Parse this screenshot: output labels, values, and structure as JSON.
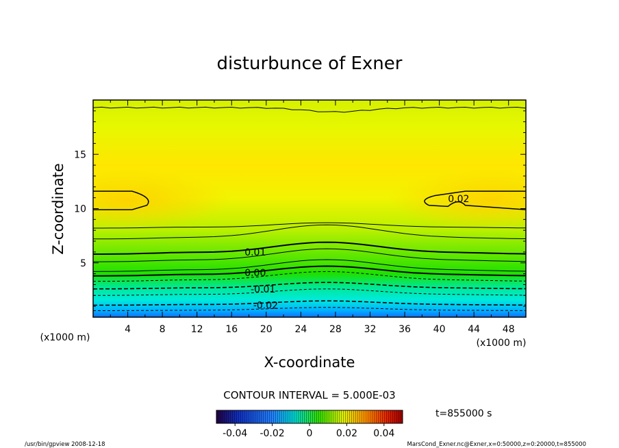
{
  "chart_data": {
    "type": "contour",
    "title": "disturbunce of Exner",
    "xlabel": "X-coordinate",
    "ylabel": "Z-coordinate",
    "xunit_left": "(x1000 m)",
    "xunit_right": "(x1000 m)",
    "xlim": [
      0,
      50
    ],
    "ylim": [
      0,
      20
    ],
    "xticks": [
      4,
      8,
      12,
      16,
      20,
      24,
      28,
      32,
      36,
      40,
      44,
      48
    ],
    "yticks": [
      5,
      10,
      15
    ],
    "contour_interval_label": "CONTOUR INTERVAL = 5.000E-03",
    "contour_interval": 0.005,
    "contour_labels": [
      {
        "value": 0.02,
        "text": "0.02",
        "x": 41,
        "z": 10.9
      },
      {
        "value": 0.01,
        "text": "0.01",
        "x": 17.5,
        "z": 6.0
      },
      {
        "value": 0.0,
        "text": "0.00",
        "x": 17.5,
        "z": 4.1
      },
      {
        "value": -0.01,
        "text": "-0.01",
        "x": 18.2,
        "z": 2.6
      },
      {
        "value": -0.02,
        "text": "-0.02",
        "x": 18.5,
        "z": 1.1
      }
    ],
    "colorbar": {
      "min": -0.05,
      "max": 0.05,
      "ticks": [
        "-0.04",
        "-0.02",
        "0",
        "0.02",
        "0.04"
      ],
      "tick_values": [
        -0.04,
        -0.02,
        0,
        0.02,
        0.04
      ]
    },
    "time_label": "t=855000 s",
    "footer_left": "/usr/bin/gpview  2008-12-18",
    "footer_right": "MarsCond_Exner.nc@Exner,x=0:50000,z=0:20000,t=855000",
    "colors": {
      "yellow": "#ffd400",
      "yellow_green": "#e8f000",
      "green": "#22e800",
      "cyan": "#00f0e0",
      "blue": "#0088ff"
    }
  }
}
